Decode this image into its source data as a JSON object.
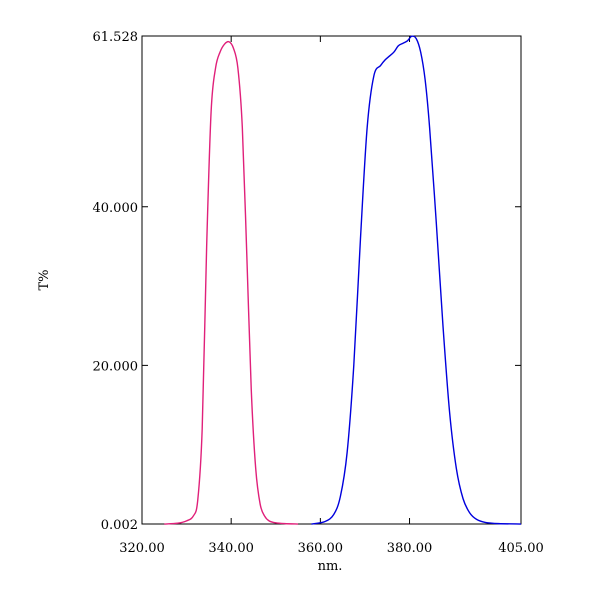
{
  "chart_data": {
    "type": "line",
    "xlabel": "nm.",
    "ylabel": "T%",
    "xlim": [
      320.0,
      405.0
    ],
    "ylim": [
      0.002,
      61.528
    ],
    "x_ticks": [
      {
        "value": 320.0,
        "label": "320.00"
      },
      {
        "value": 340.0,
        "label": "340.00"
      },
      {
        "value": 360.0,
        "label": "360.00"
      },
      {
        "value": 380.0,
        "label": "380.00"
      },
      {
        "value": 405.0,
        "label": "405.00"
      }
    ],
    "y_ticks": [
      {
        "value": 0.002,
        "label": "0.002"
      },
      {
        "value": 20.0,
        "label": "20.000"
      },
      {
        "value": 40.0,
        "label": "40.000"
      },
      {
        "value": 61.528,
        "label": "61.528"
      }
    ],
    "grid": false,
    "series": [
      {
        "color": "#e0207a",
        "x": [
          325,
          328,
          330,
          331.5,
          332.5,
          333.5,
          334.5,
          335.5,
          336.5,
          337.5,
          338.5,
          339.5,
          340.5,
          341.5,
          342.5,
          343.5,
          344.5,
          345.5,
          346.5,
          347.5,
          348.5,
          350,
          352,
          355
        ],
        "y": [
          0.0,
          0.1,
          0.4,
          1.0,
          3.0,
          12.0,
          35.0,
          52.0,
          57.5,
          59.5,
          60.5,
          60.8,
          60.0,
          57.5,
          50.0,
          34.0,
          17.0,
          7.0,
          2.5,
          1.0,
          0.4,
          0.15,
          0.05,
          0.0
        ]
      },
      {
        "color": "#0000dd",
        "x": [
          358,
          361,
          363,
          364.5,
          366,
          367.5,
          369,
          370.5,
          372,
          373.5,
          374.5,
          375.5,
          376.5,
          377.5,
          378.5,
          379.5,
          380.5,
          381.5,
          382.5,
          383.5,
          384.5,
          386,
          387.5,
          389,
          390.5,
          392,
          393.5,
          395,
          397,
          400,
          405
        ],
        "y": [
          0.0,
          0.3,
          1.2,
          3.5,
          9.0,
          20.0,
          36.0,
          50.0,
          56.5,
          57.8,
          58.5,
          59.0,
          59.5,
          60.3,
          60.6,
          60.9,
          61.5,
          61.2,
          59.5,
          56.0,
          50.0,
          38.0,
          25.0,
          14.0,
          7.0,
          3.2,
          1.4,
          0.6,
          0.2,
          0.05,
          0.0
        ]
      }
    ]
  }
}
